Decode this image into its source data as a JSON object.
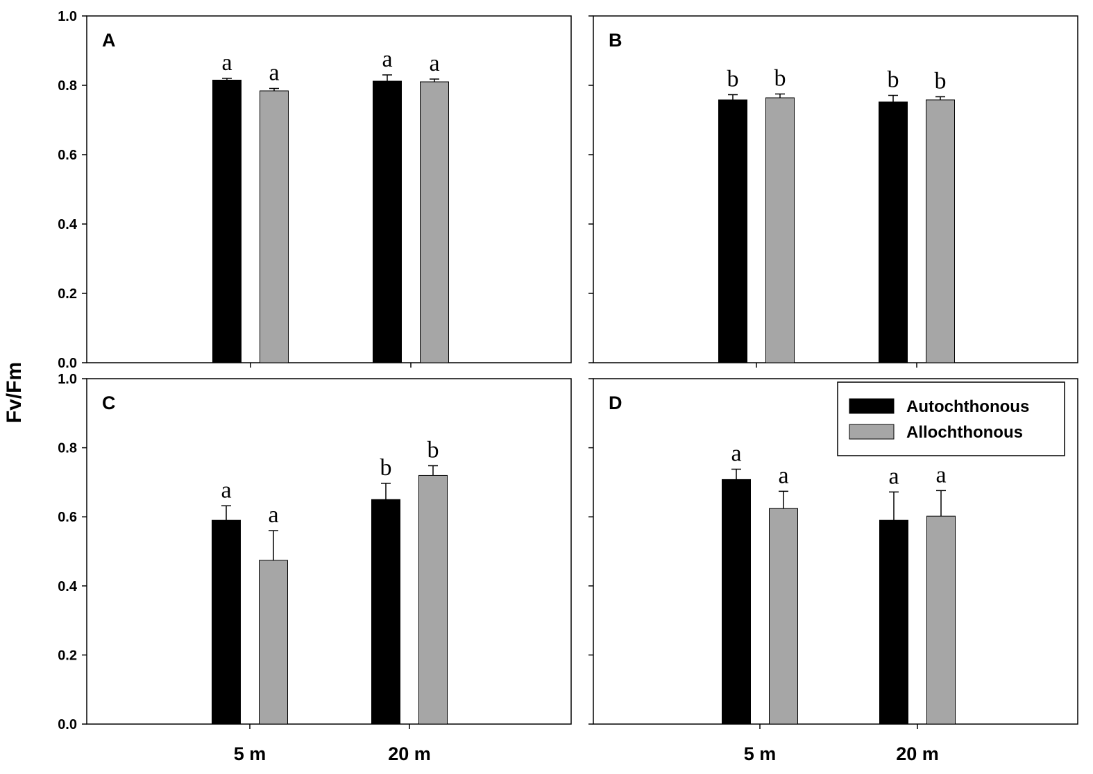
{
  "y_axis_label": "Fv/Fm",
  "legend": {
    "entries": [
      {
        "label": "Autochthonous",
        "color": "#000000"
      },
      {
        "label": "Allochthonous",
        "color": "#a6a6a6"
      }
    ],
    "placement": "top-right of panel D"
  },
  "colors": {
    "autochthonous": "#000000",
    "allochthonous": "#a6a6a6"
  },
  "chart_data": [
    {
      "type": "bar",
      "panel": "A",
      "categories": [
        "5 m",
        "20 m"
      ],
      "series": [
        {
          "name": "Autochthonous",
          "values": [
            0.815,
            0.812
          ],
          "errors": [
            0.005,
            0.018
          ],
          "labels": [
            "a",
            "a"
          ]
        },
        {
          "name": "Allochthonous",
          "values": [
            0.784,
            0.81
          ],
          "errors": [
            0.007,
            0.008
          ],
          "labels": [
            "a",
            "a"
          ]
        }
      ],
      "ylim": [
        0,
        1.0
      ],
      "yticks": [
        "0.0",
        "0.2",
        "0.4",
        "0.6",
        "0.8",
        "1.0"
      ],
      "show_y_tick_labels": true,
      "show_x_tick_labels": false
    },
    {
      "type": "bar",
      "panel": "B",
      "categories": [
        "5 m",
        "20 m"
      ],
      "series": [
        {
          "name": "Autochthonous",
          "values": [
            0.758,
            0.752
          ],
          "errors": [
            0.015,
            0.019
          ],
          "labels": [
            "b",
            "b"
          ]
        },
        {
          "name": "Allochthonous",
          "values": [
            0.764,
            0.758
          ],
          "errors": [
            0.011,
            0.009
          ],
          "labels": [
            "b",
            "b"
          ]
        }
      ],
      "ylim": [
        0,
        1.0
      ],
      "yticks": [
        "0.0",
        "0.2",
        "0.4",
        "0.6",
        "0.8",
        "1.0"
      ],
      "show_y_tick_labels": false,
      "show_x_tick_labels": false
    },
    {
      "type": "bar",
      "panel": "C",
      "categories": [
        "5 m",
        "20 m"
      ],
      "series": [
        {
          "name": "Autochthonous",
          "values": [
            0.59,
            0.65
          ],
          "errors": [
            0.042,
            0.047
          ],
          "labels": [
            "a",
            "b"
          ]
        },
        {
          "name": "Allochthonous",
          "values": [
            0.474,
            0.72
          ],
          "errors": [
            0.086,
            0.028
          ],
          "labels": [
            "a",
            "b"
          ]
        }
      ],
      "ylim": [
        0,
        1.0
      ],
      "yticks": [
        "0.0",
        "0.2",
        "0.4",
        "0.6",
        "0.8",
        "1.0"
      ],
      "show_y_tick_labels": true,
      "show_x_tick_labels": true
    },
    {
      "type": "bar",
      "panel": "D",
      "categories": [
        "5 m",
        "20 m"
      ],
      "series": [
        {
          "name": "Autochthonous",
          "values": [
            0.708,
            0.59
          ],
          "errors": [
            0.03,
            0.082
          ],
          "labels": [
            "a",
            "a"
          ]
        },
        {
          "name": "Allochthonous",
          "values": [
            0.624,
            0.602
          ],
          "errors": [
            0.05,
            0.074
          ],
          "labels": [
            "a",
            "a"
          ]
        }
      ],
      "ylim": [
        0,
        1.0
      ],
      "yticks": [
        "0.0",
        "0.2",
        "0.4",
        "0.6",
        "0.8",
        "1.0"
      ],
      "show_y_tick_labels": false,
      "show_x_tick_labels": true
    }
  ]
}
